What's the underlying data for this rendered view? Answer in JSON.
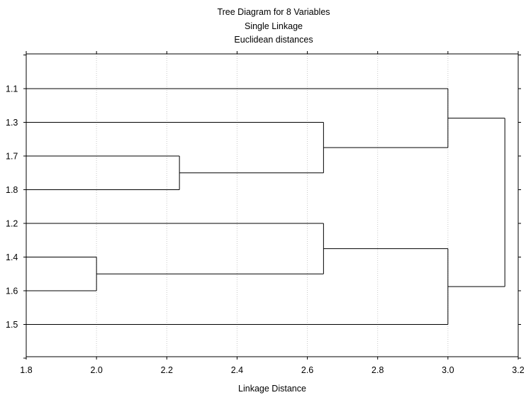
{
  "chart_data": {
    "type": "dendrogram",
    "title_lines": [
      "Tree Diagram for 8   Variables",
      "Single Linkage",
      "Euclidean distances"
    ],
    "xlabel": "Linkage Distance",
    "xlim": [
      1.8,
      3.2
    ],
    "x_ticks": [
      "1.8",
      "2.0",
      "2.2",
      "2.4",
      "2.6",
      "2.8",
      "3.0",
      "3.2"
    ],
    "grid": "vertical dotted",
    "leaves": [
      "1.1",
      "1.3",
      "1.7",
      "1.8",
      "1.2",
      "1.4",
      "1.6",
      "1.5"
    ],
    "merges": [
      {
        "a": "leaf:1.4",
        "b": "leaf:1.6",
        "height": 2.0
      },
      {
        "a": "leaf:1.7",
        "b": "leaf:1.8",
        "height": 2.236
      },
      {
        "a": "leaf:1.3",
        "b": "node:1",
        "height": 2.646
      },
      {
        "a": "leaf:1.2",
        "b": "node:0",
        "height": 2.646
      },
      {
        "a": "leaf:1.1",
        "b": "node:2",
        "height": 3.0
      },
      {
        "a": "node:3",
        "b": "leaf:1.5",
        "height": 3.0
      },
      {
        "a": "node:4",
        "b": "node:5",
        "height": 3.162
      }
    ],
    "colors": {
      "lines": "#000000",
      "grid": "#c8c8c8",
      "background": "#ffffff"
    }
  }
}
